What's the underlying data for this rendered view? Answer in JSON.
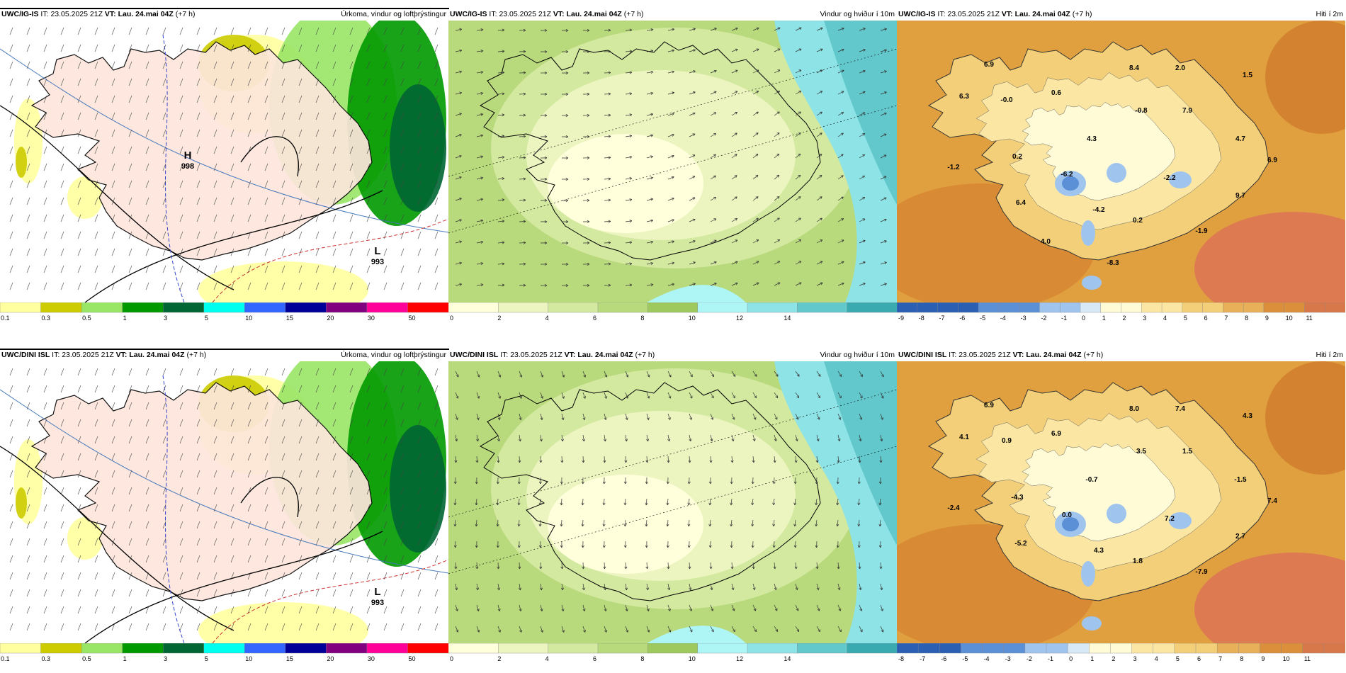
{
  "panels": [
    {
      "model": "UWC/IG-IS",
      "it_label": "IT:",
      "it": "23.05.2025 21Z",
      "vt_label": "VT:",
      "vt": "Lau. 24.mai 04Z",
      "lead": "(+7 h)",
      "product": "Úrkoma, vindur og loftþrýstingur",
      "pressure": [
        {
          "type": "H",
          "value": "998"
        },
        {
          "type": "L",
          "value": "993"
        }
      ],
      "colorbar": {
        "ticks": [
          "0.1",
          "0.3",
          "0.5",
          "1",
          "3",
          "5",
          "10",
          "15",
          "20",
          "30",
          "50"
        ],
        "colors": [
          "#ffff9f",
          "#cccc00",
          "#99e666",
          "#009900",
          "#006633",
          "#00ffee",
          "#3366ff",
          "#000099",
          "#800080",
          "#ff0099",
          "#ff0000"
        ]
      }
    },
    {
      "model": "UWC/IG-IS",
      "it_label": "IT:",
      "it": "23.05.2025 21Z",
      "vt_label": "VT:",
      "vt": "Lau. 24.mai 04Z",
      "lead": "(+7 h)",
      "product": "Vindur og hviður í 10m",
      "colorbar": {
        "ticks": [
          "0",
          "2",
          "4",
          "6",
          "8",
          "10",
          "12",
          "14"
        ],
        "colors": [
          "#ffffdc",
          "#ecf5c0",
          "#d3e9a0",
          "#b8d97c",
          "#9dc95d",
          "#aef5f5",
          "#8ee3e6",
          "#62c8cc",
          "#38aab0"
        ]
      }
    },
    {
      "model": "UWC/IG-IS",
      "it_label": "IT:",
      "it": "23.05.2025 21Z",
      "vt_label": "VT:",
      "vt": "Lau. 24.mai 04Z",
      "lead": "(+7 h)",
      "product": "Hiti í 2m",
      "labels": [
        "6.9",
        "6.3",
        "-0.0",
        "0.6",
        "8.4",
        "2.0",
        "1.5",
        "-0.8",
        "7.9",
        "4.3",
        "4.7",
        "0.2",
        "-1.2",
        "-6.2",
        "-2.2",
        "6.9",
        "6.4",
        "-4.2",
        "0.2",
        "9.7",
        "-1.9",
        "4.0",
        "-8.3"
      ],
      "colorbar": {
        "ticks": [
          "-9",
          "-8",
          "-7",
          "-6",
          "-5",
          "-4",
          "-3",
          "-2",
          "-1",
          "0",
          "1",
          "2",
          "3",
          "4",
          "5",
          "6",
          "7",
          "8",
          "9",
          "10",
          "11"
        ]
      }
    },
    {
      "model": "UWC/DINI ISL",
      "it_label": "IT:",
      "it": "23.05.2025 21Z",
      "vt_label": "VT:",
      "vt": "Lau. 24.mai 04Z",
      "lead": "(+7 h)",
      "product": "Úrkoma, vindur og loftþrýstingur",
      "pressure": [
        {
          "type": "L",
          "value": "993"
        }
      ],
      "colorbar": {
        "ticks": [
          "0.1",
          "0.3",
          "0.5",
          "1",
          "3",
          "5",
          "10",
          "15",
          "20",
          "30",
          "50"
        ],
        "colors": [
          "#ffff9f",
          "#cccc00",
          "#99e666",
          "#009900",
          "#006633",
          "#00ffee",
          "#3366ff",
          "#000099",
          "#800080",
          "#ff0099",
          "#ff0000"
        ]
      }
    },
    {
      "model": "UWC/DINI ISL",
      "it_label": "IT:",
      "it": "23.05.2025 21Z",
      "vt_label": "VT:",
      "vt": "Lau. 24.mai 04Z",
      "lead": "(+7 h)",
      "product": "Vindur og hviður í 10m",
      "colorbar": {
        "ticks": [
          "0",
          "2",
          "4",
          "6",
          "8",
          "10",
          "12",
          "14"
        ],
        "colors": [
          "#ffffdc",
          "#ecf5c0",
          "#d3e9a0",
          "#b8d97c",
          "#9dc95d",
          "#aef5f5",
          "#8ee3e6",
          "#62c8cc",
          "#38aab0"
        ]
      }
    },
    {
      "model": "UWC/DINI ISL",
      "it_label": "IT:",
      "it": "23.05.2025 21Z",
      "vt_label": "VT:",
      "vt": "Lau. 24.mai 04Z",
      "lead": "(+7 h)",
      "product": "Hiti í 2m",
      "labels": [
        "6.9",
        "4.1",
        "0.9",
        "6.9",
        "8.0",
        "7.4",
        "4.3",
        "3.5",
        "1.5",
        "-0.7",
        "-1.5",
        "-4.3",
        "-2.4",
        "0.0",
        "7.2",
        "7.4",
        "-5.2",
        "4.3",
        "1.8",
        "2.7",
        "-7.9"
      ],
      "colorbar": {
        "ticks": [
          "-8",
          "-7",
          "-6",
          "-5",
          "-4",
          "-3",
          "-2",
          "-1",
          "0",
          "1",
          "2",
          "3",
          "4",
          "5",
          "6",
          "7",
          "8",
          "9",
          "10",
          "11"
        ]
      }
    }
  ]
}
